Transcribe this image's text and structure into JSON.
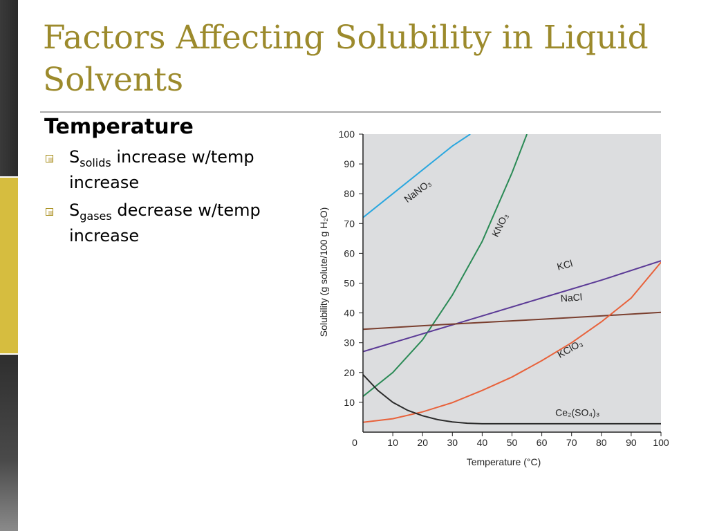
{
  "slide": {
    "title": "Factors Affecting Solubility in Liquid Solvents",
    "subheading": "Temperature",
    "bullets": [
      {
        "prefix": "S",
        "subscript": "solids",
        "text": " increase w/temp increase"
      },
      {
        "prefix": "S",
        "subscript": "gases",
        "text": " decrease w/temp increase"
      }
    ],
    "colors": {
      "title": "#9c8a2c",
      "accent_bar": "#d6bd3f",
      "bullet": "#a88f1c"
    }
  },
  "chart_data": {
    "type": "line",
    "xlabel": "Temperature (°C)",
    "ylabel": "Solubility (g solute/100 g H₂O)",
    "xlim": [
      0,
      100
    ],
    "ylim": [
      0,
      100
    ],
    "x_ticks": [
      "0",
      "10",
      "20",
      "30",
      "40",
      "50",
      "60",
      "70",
      "80",
      "90",
      "100"
    ],
    "y_ticks": [
      "100",
      "90",
      "80",
      "70",
      "60",
      "50",
      "40",
      "30",
      "20",
      "10"
    ],
    "grid": false,
    "series": [
      {
        "name": "NaNO₃",
        "color": "#2aa7df",
        "x": [
          0,
          10,
          20,
          30,
          36
        ],
        "y": [
          72,
          80,
          88,
          96,
          100
        ]
      },
      {
        "name": "KNO₃",
        "color": "#2a8a55",
        "x": [
          0,
          10,
          20,
          30,
          40,
          50,
          55
        ],
        "y": [
          12,
          20,
          31,
          46,
          64,
          87,
          100
        ]
      },
      {
        "name": "KCl",
        "color": "#5b3a96",
        "x": [
          0,
          20,
          40,
          60,
          80,
          100
        ],
        "y": [
          27,
          33,
          39,
          45,
          51,
          57.5
        ]
      },
      {
        "name": "NaCl",
        "color": "#7a3f2f",
        "x": [
          0,
          20,
          40,
          60,
          80,
          100
        ],
        "y": [
          34.5,
          35.7,
          36.8,
          37.9,
          39,
          40.2
        ]
      },
      {
        "name": "KClO₃",
        "color": "#e8613a",
        "x": [
          0,
          10,
          20,
          30,
          40,
          50,
          60,
          70,
          80,
          90,
          100
        ],
        "y": [
          3.3,
          4.5,
          6.8,
          9.9,
          14,
          18.5,
          24,
          30,
          37,
          45,
          57
        ]
      },
      {
        "name": "Ce₂(SO₄)₃",
        "color": "#2b2b2b",
        "x": [
          0,
          5,
          10,
          15,
          20,
          25,
          30,
          35,
          40,
          100
        ],
        "y": [
          19.3,
          14,
          10,
          7.3,
          5.5,
          4.2,
          3.4,
          3,
          2.8,
          2.8
        ]
      }
    ]
  }
}
